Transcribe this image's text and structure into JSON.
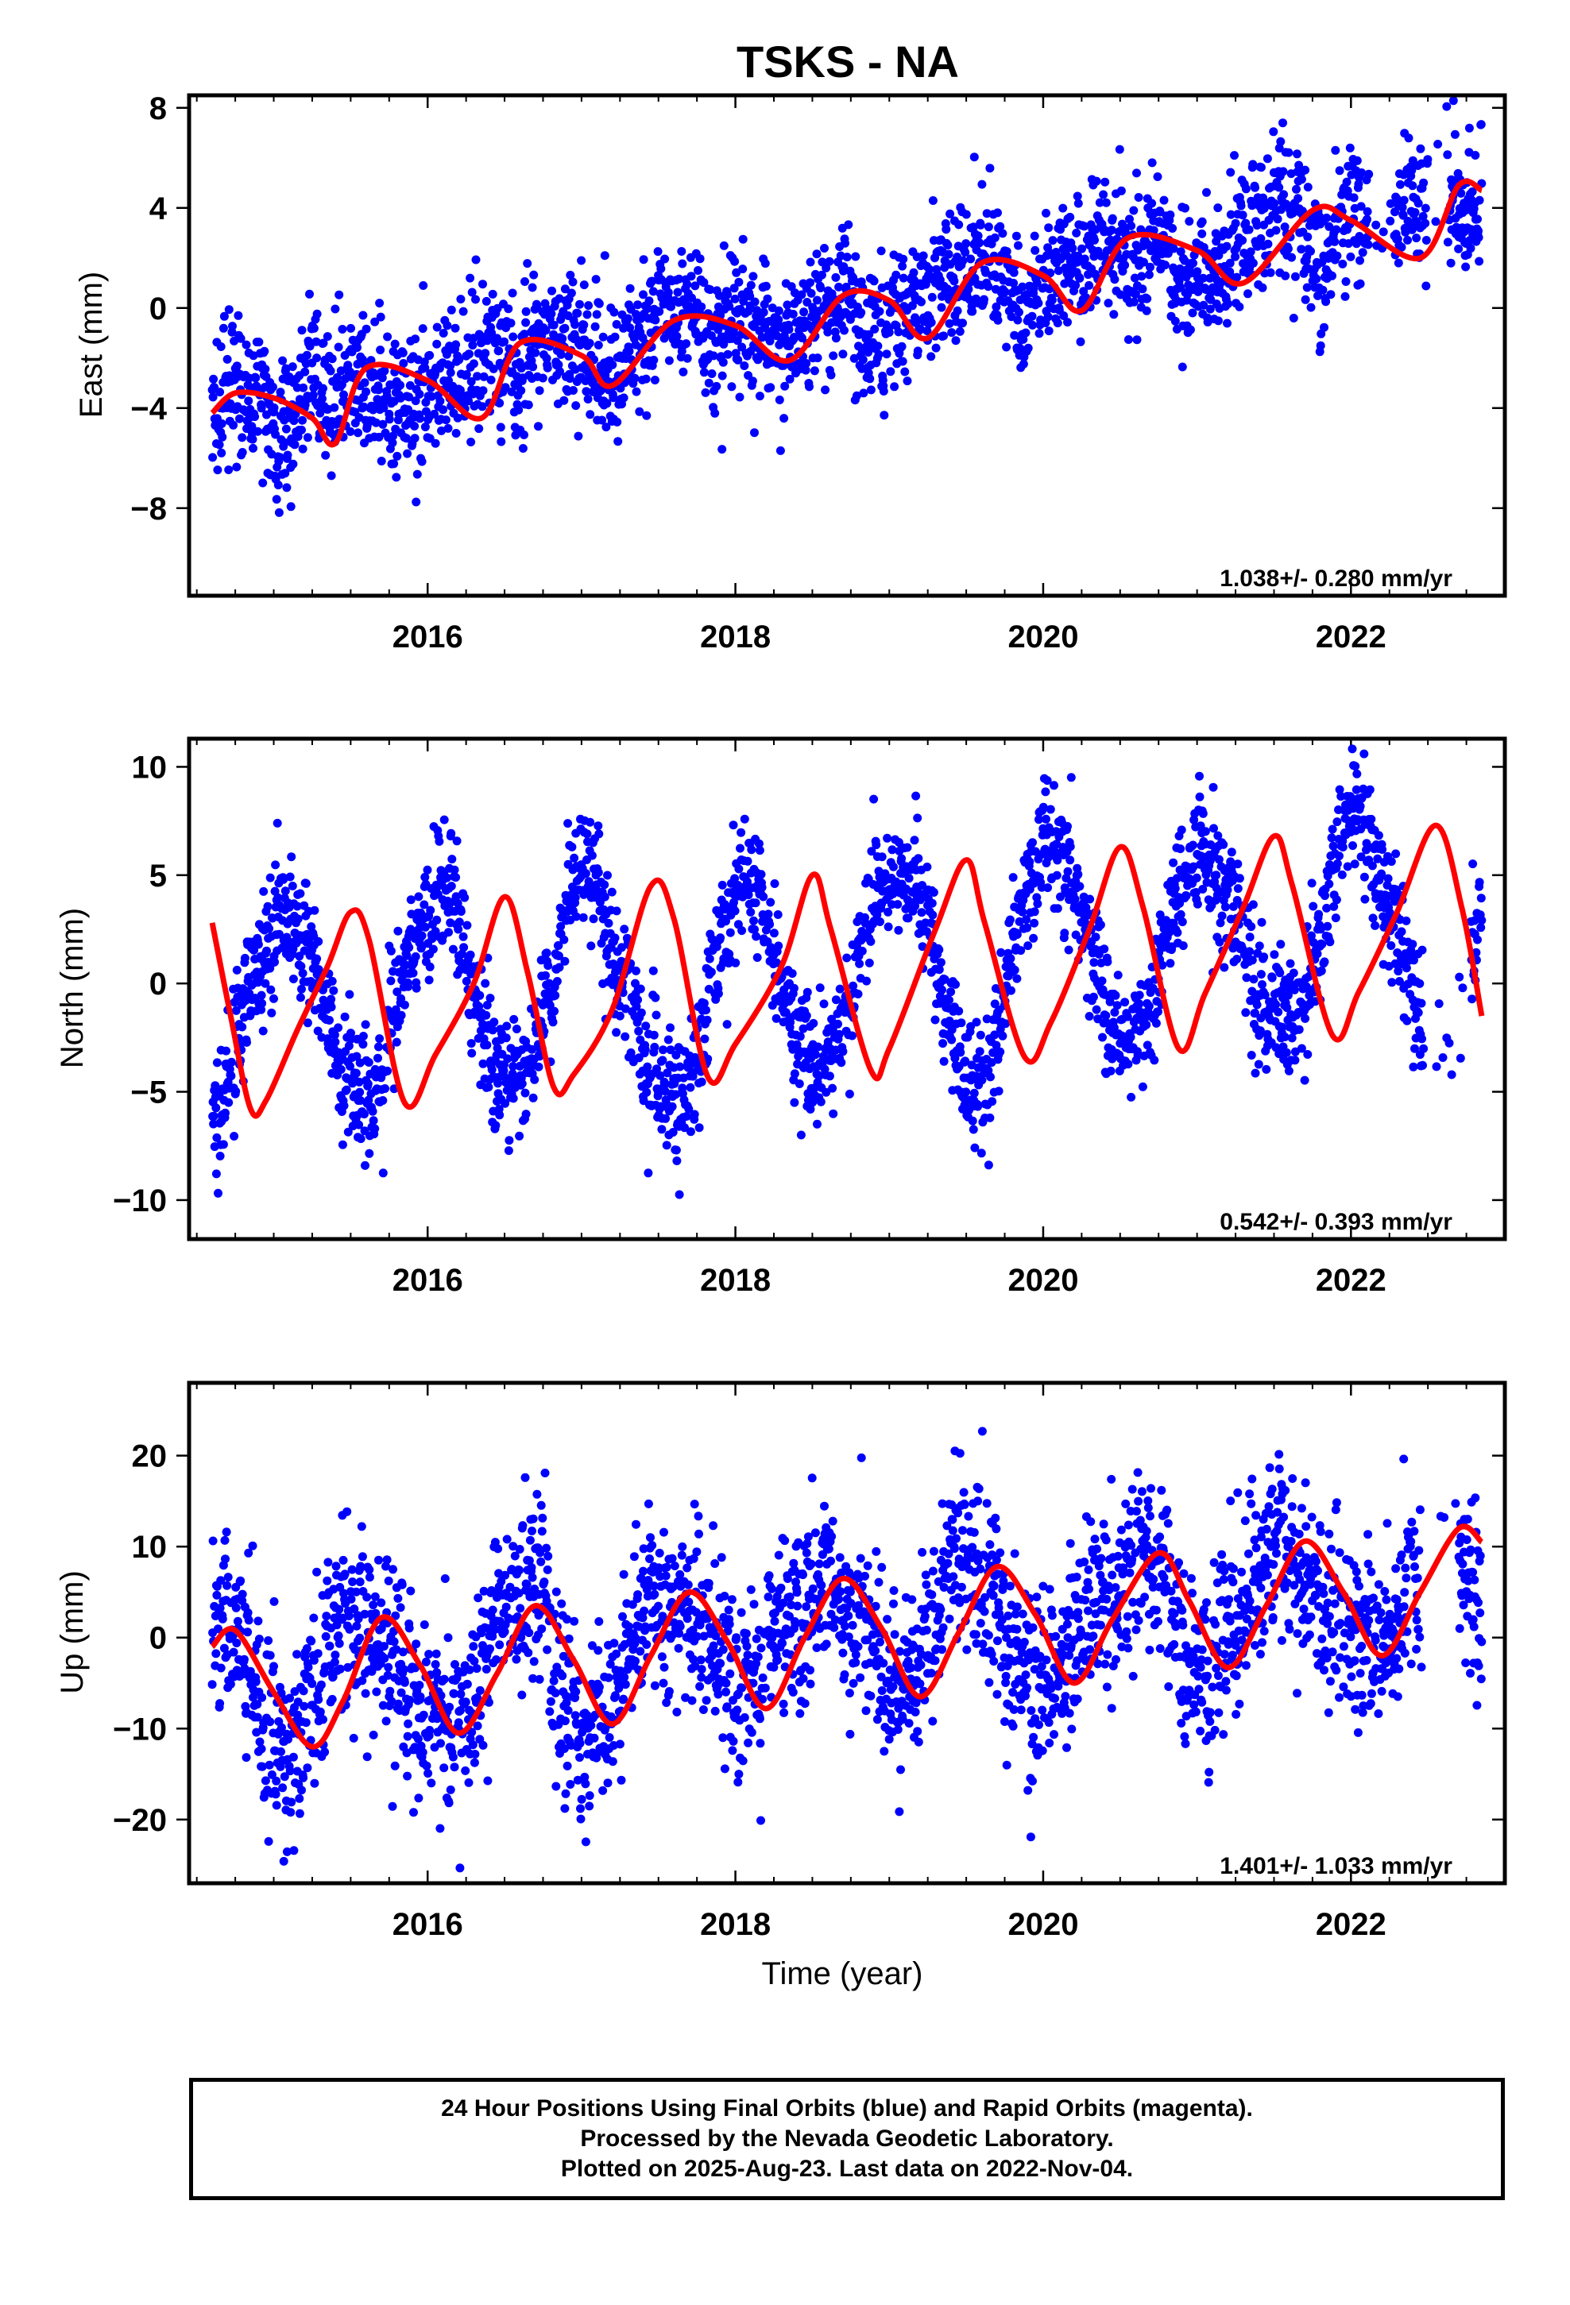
{
  "title": "TSKS - NA",
  "xlabel": "Time (year)",
  "footer": {
    "line1": "24 Hour Positions Using Final Orbits (blue) and Rapid Orbits (magenta).",
    "line2": "Processed by the Nevada Geodetic Laboratory.",
    "line3": "Plotted on 2025-Aug-23. Last data on 2022-Nov-04."
  },
  "colors": {
    "data_points": "#0000ff",
    "model_curve": "#ff0000",
    "frame": "#000000"
  },
  "chart_data": [
    {
      "type": "scatter",
      "component": "east",
      "ylabel": "East (mm)",
      "rate_text": "1.038+/- 0.280 mm/yr",
      "xlim": [
        2014.45,
        2023.0
      ],
      "ylim": [
        -11.5,
        8.5
      ],
      "xticks": [
        2016,
        2018,
        2020,
        2022
      ],
      "yticks": [
        -8,
        -4,
        0,
        4,
        8
      ],
      "data_span": [
        2014.6,
        2022.85
      ],
      "gaps": [
        [
          2022.12,
          2022.28
        ],
        [
          2022.5,
          2022.62
        ]
      ],
      "trend": {
        "rate_mm_yr": 1.038,
        "value_at_2014_6": -4.4
      },
      "seasonal": [
        [
          0.25,
          0.55,
          0.45,
          0.1,
          0.2
        ],
        [
          1.1,
          0.3,
          0.6,
          0.5,
          0.35
        ]
      ],
      "curve": [
        [
          2014.6,
          -4.2
        ],
        [
          2014.75,
          -3.4
        ],
        [
          2015.0,
          -3.6
        ],
        [
          2015.25,
          -4.4
        ],
        [
          2015.4,
          -5.4
        ],
        [
          2015.6,
          -2.4
        ],
        [
          2016.0,
          -2.9
        ],
        [
          2016.35,
          -4.4
        ],
        [
          2016.6,
          -1.4
        ],
        [
          2017.0,
          -1.9
        ],
        [
          2017.2,
          -3.1
        ],
        [
          2017.6,
          -0.5
        ],
        [
          2018.0,
          -0.7
        ],
        [
          2018.35,
          -2.1
        ],
        [
          2018.7,
          0.5
        ],
        [
          2019.0,
          0.3
        ],
        [
          2019.25,
          -1.2
        ],
        [
          2019.6,
          1.8
        ],
        [
          2020.0,
          1.3
        ],
        [
          2020.25,
          -0.1
        ],
        [
          2020.55,
          2.8
        ],
        [
          2021.0,
          2.3
        ],
        [
          2021.3,
          1.0
        ],
        [
          2021.75,
          3.9
        ],
        [
          2022.0,
          3.5
        ],
        [
          2022.45,
          2.0
        ],
        [
          2022.7,
          4.9
        ],
        [
          2022.85,
          4.7
        ]
      ]
    },
    {
      "type": "scatter",
      "component": "north",
      "ylabel": "North (mm)",
      "rate_text": "0.542+/- 0.393 mm/yr",
      "xlim": [
        2014.45,
        2023.0
      ],
      "ylim": [
        -11.8,
        11.3
      ],
      "xticks": [
        2016,
        2018,
        2020,
        2022
      ],
      "yticks": [
        -10,
        -5,
        0,
        5,
        10
      ],
      "data_span": [
        2014.6,
        2022.85
      ],
      "gaps": [
        [
          2022.47,
          2022.78
        ]
      ],
      "trend": {
        "rate_mm_yr": 0.542,
        "value_at_2014_6": -1.8
      },
      "seasonal": [
        [
          5.0,
          0.6,
          0.3,
          0.1,
          0.0
        ],
        [
          0.8,
          0.25,
          0.6,
          0.4,
          0.2
        ]
      ],
      "curve": [
        [
          2014.6,
          2.8
        ],
        [
          2014.72,
          -1.5
        ],
        [
          2014.85,
          -5.8
        ],
        [
          2014.95,
          -5.4
        ],
        [
          2015.15,
          -2.2
        ],
        [
          2015.35,
          0.8
        ],
        [
          2015.5,
          3.3
        ],
        [
          2015.62,
          2.0
        ],
        [
          2015.85,
          -5.5
        ],
        [
          2016.05,
          -3.3
        ],
        [
          2016.3,
          0.0
        ],
        [
          2016.5,
          4.0
        ],
        [
          2016.65,
          0.5
        ],
        [
          2016.82,
          -4.8
        ],
        [
          2016.95,
          -4.2
        ],
        [
          2017.2,
          -1.2
        ],
        [
          2017.45,
          4.5
        ],
        [
          2017.6,
          3.0
        ],
        [
          2017.82,
          -4.3
        ],
        [
          2018.0,
          -2.8
        ],
        [
          2018.3,
          0.8
        ],
        [
          2018.5,
          5.0
        ],
        [
          2018.62,
          2.5
        ],
        [
          2018.88,
          -4.0
        ],
        [
          2019.0,
          -3.0
        ],
        [
          2019.3,
          2.5
        ],
        [
          2019.5,
          5.7
        ],
        [
          2019.62,
          2.8
        ],
        [
          2019.88,
          -3.4
        ],
        [
          2020.05,
          -1.8
        ],
        [
          2020.3,
          2.5
        ],
        [
          2020.5,
          6.3
        ],
        [
          2020.65,
          3.5
        ],
        [
          2020.88,
          -3.0
        ],
        [
          2021.05,
          -0.5
        ],
        [
          2021.3,
          3.5
        ],
        [
          2021.5,
          6.8
        ],
        [
          2021.62,
          4.5
        ],
        [
          2021.88,
          -2.4
        ],
        [
          2022.05,
          -0.4
        ],
        [
          2022.3,
          3.3
        ],
        [
          2022.55,
          7.3
        ],
        [
          2022.72,
          3.5
        ],
        [
          2022.85,
          -1.5
        ]
      ]
    },
    {
      "type": "scatter",
      "component": "up",
      "ylabel": "Up (mm)",
      "rate_text": "1.401+/- 1.033 mm/yr",
      "xlim": [
        2014.45,
        2023.0
      ],
      "ylim": [
        -27,
        28
      ],
      "xticks": [
        2016,
        2018,
        2020,
        2022
      ],
      "yticks": [
        -20,
        -10,
        0,
        10,
        20
      ],
      "data_span": [
        2014.6,
        2022.85
      ],
      "gaps": [
        [
          2022.45,
          2022.7
        ]
      ],
      "trend": {
        "rate_mm_yr": 1.401,
        "value_at_2014_6": -6.0
      },
      "seasonal": [
        [
          6.0,
          1.0,
          0.5,
          0.2,
          0.0
        ],
        [
          0.3,
          0.4,
          0.5,
          0.3,
          0.2
        ]
      ],
      "curve": [
        [
          2014.6,
          -1.0
        ],
        [
          2014.75,
          0.8
        ],
        [
          2015.0,
          -6.0
        ],
        [
          2015.25,
          -12.0
        ],
        [
          2015.45,
          -7.0
        ],
        [
          2015.7,
          2.2
        ],
        [
          2015.95,
          -3.0
        ],
        [
          2016.2,
          -10.5
        ],
        [
          2016.45,
          -4.0
        ],
        [
          2016.7,
          3.5
        ],
        [
          2016.95,
          -2.5
        ],
        [
          2017.2,
          -9.5
        ],
        [
          2017.45,
          -2.0
        ],
        [
          2017.7,
          5.0
        ],
        [
          2017.95,
          -0.5
        ],
        [
          2018.2,
          -7.8
        ],
        [
          2018.45,
          0.0
        ],
        [
          2018.7,
          6.5
        ],
        [
          2018.95,
          1.0
        ],
        [
          2019.2,
          -6.5
        ],
        [
          2019.45,
          0.5
        ],
        [
          2019.7,
          7.8
        ],
        [
          2019.95,
          2.5
        ],
        [
          2020.2,
          -5.0
        ],
        [
          2020.45,
          2.0
        ],
        [
          2020.75,
          9.3
        ],
        [
          2020.95,
          4.0
        ],
        [
          2021.2,
          -3.3
        ],
        [
          2021.45,
          3.5
        ],
        [
          2021.7,
          10.6
        ],
        [
          2021.95,
          5.0
        ],
        [
          2022.2,
          -2.0
        ],
        [
          2022.45,
          5.0
        ],
        [
          2022.7,
          12.0
        ],
        [
          2022.85,
          10.5
        ]
      ]
    }
  ]
}
